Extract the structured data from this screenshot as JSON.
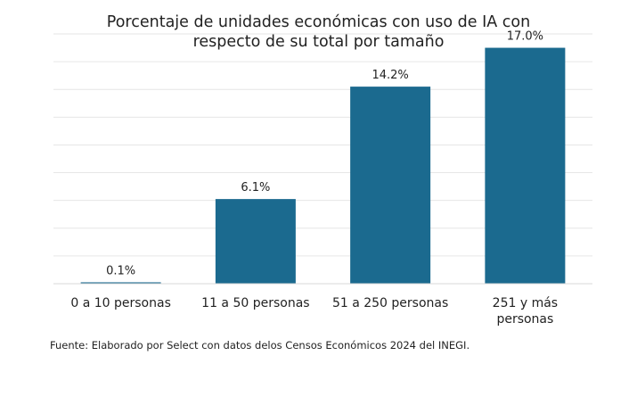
{
  "chart_data": {
    "type": "bar",
    "title_lines": [
      "Porcentaje de unidades económicas con uso de IA con",
      "respecto de su total por tamaño"
    ],
    "categories": [
      [
        "0 a 10 personas"
      ],
      [
        "11 a 50 personas"
      ],
      [
        "51 a 250 personas"
      ],
      [
        "251 y más",
        "personas"
      ]
    ],
    "values": [
      0.1,
      6.1,
      14.2,
      17.0
    ],
    "value_labels": [
      "0.1%",
      "6.1%",
      "14.2%",
      "17.0%"
    ],
    "ylim": [
      0,
      18
    ],
    "grid": true,
    "legend": "none",
    "bar_color": "#1b6a8f",
    "grid_color": "#e6e6e6"
  },
  "footer": {
    "source": "Fuente: Elaborado por Select con datos delos Censos Económicos 2024 del INEGI."
  }
}
